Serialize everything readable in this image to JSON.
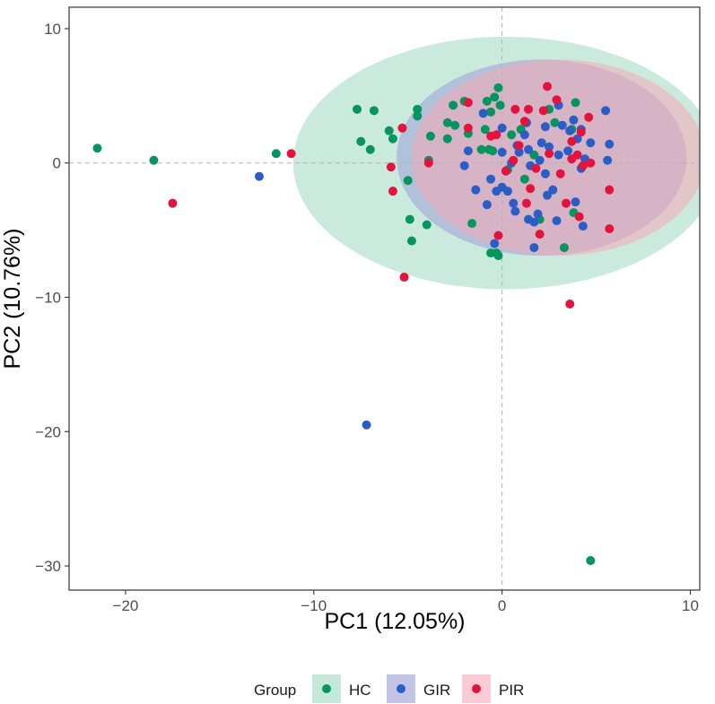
{
  "chart_data": {
    "type": "scatter",
    "title": "",
    "xlabel": "PC1 (12.05%)",
    "ylabel": "PC2 (10.76%)",
    "xlim": [
      -23,
      10.5
    ],
    "ylim": [
      -31.8,
      11.6
    ],
    "xticks": [
      -20,
      -10,
      0,
      10
    ],
    "yticks": [
      10,
      0,
      -10,
      -20,
      -30
    ],
    "reference_lines": {
      "x": 0,
      "y": 0
    },
    "legend": {
      "title": "Group",
      "position": "bottom"
    },
    "series": [
      {
        "name": "HC",
        "color": "#07955f",
        "ellipse": {
          "cx": 0.2,
          "cy": 0.0,
          "rx": 11.3,
          "ry": 9.4,
          "fill": "#9fd8c2"
        },
        "points": [
          [
            -21.5,
            1.1
          ],
          [
            -18.5,
            0.2
          ],
          [
            -12,
            0.7
          ],
          [
            -7.7,
            4.0
          ],
          [
            -6.8,
            3.9
          ],
          [
            -7.5,
            1.6
          ],
          [
            -7.0,
            1.0
          ],
          [
            -6.0,
            2.4
          ],
          [
            -5.8,
            1.8
          ],
          [
            -4.5,
            4.0
          ],
          [
            -4.5,
            3.5
          ],
          [
            -5.0,
            -1.3
          ],
          [
            -3.8,
            2.0
          ],
          [
            -3.9,
            0.2
          ],
          [
            -4.0,
            -4.6
          ],
          [
            -4.9,
            -4.2
          ],
          [
            -4.8,
            -5.8
          ],
          [
            -2.6,
            4.3
          ],
          [
            -2.5,
            2.8
          ],
          [
            -2.9,
            3.0
          ],
          [
            -2.0,
            4.6
          ],
          [
            -1.8,
            2.2
          ],
          [
            -2.9,
            1.8
          ],
          [
            -0.9,
            2.5
          ],
          [
            -0.6,
            3.8
          ],
          [
            -0.4,
            4.9
          ],
          [
            -0.8,
            4.6
          ],
          [
            -0.2,
            5.6
          ],
          [
            -0.1,
            4.3
          ],
          [
            -1.1,
            1.0
          ],
          [
            -0.7,
            1.0
          ],
          [
            -0.5,
            0.9
          ],
          [
            -1.6,
            -4.5
          ],
          [
            0.3,
            -0.5
          ],
          [
            0.5,
            2.1
          ],
          [
            1.0,
            2.5
          ],
          [
            1.2,
            -1.2
          ],
          [
            1.7,
            0.6
          ],
          [
            2.0,
            -4.2
          ],
          [
            2.5,
            4.0
          ],
          [
            2.8,
            3.0
          ],
          [
            3.7,
            2.5
          ],
          [
            3.9,
            4.5
          ],
          [
            3.8,
            -3.7
          ],
          [
            3.3,
            -6.3
          ],
          [
            -0.3,
            -6.7
          ],
          [
            -0.6,
            -6.7
          ],
          [
            -0.2,
            -6.9
          ],
          [
            4.7,
            -29.6
          ]
        ]
      },
      {
        "name": "GIR",
        "color": "#2a5dc6",
        "ellipse": {
          "cx": 2.1,
          "cy": 0.4,
          "rx": 7.7,
          "ry": 7.3,
          "fill": "#9a9ed6"
        },
        "points": [
          [
            -12.9,
            -1.0
          ],
          [
            -7.2,
            -19.5
          ],
          [
            -2.0,
            -0.2
          ],
          [
            -1.4,
            -2.0
          ],
          [
            -1.8,
            0.9
          ],
          [
            -1.0,
            3.7
          ],
          [
            -0.6,
            -1.2
          ],
          [
            -0.8,
            -3.1
          ],
          [
            -0.3,
            -2.1
          ],
          [
            -0.4,
            -6.0
          ],
          [
            0.0,
            0.8
          ],
          [
            0.0,
            2.6
          ],
          [
            0.0,
            -1.8
          ],
          [
            0.3,
            -2.1
          ],
          [
            0.5,
            0.0
          ],
          [
            0.6,
            -3.0
          ],
          [
            0.7,
            -3.6
          ],
          [
            0.8,
            1.3
          ],
          [
            0.9,
            0.8
          ],
          [
            1.2,
            2.1
          ],
          [
            1.3,
            3.0
          ],
          [
            1.4,
            -4.2
          ],
          [
            1.4,
            1.0
          ],
          [
            1.5,
            -0.2
          ],
          [
            1.7,
            -4.4
          ],
          [
            1.7,
            -6.3
          ],
          [
            1.9,
            -3.8
          ],
          [
            2.0,
            0.2
          ],
          [
            2.1,
            1.5
          ],
          [
            2.3,
            -0.8
          ],
          [
            2.3,
            2.7
          ],
          [
            2.4,
            -2.4
          ],
          [
            2.5,
            1.2
          ],
          [
            2.7,
            -2.0
          ],
          [
            2.9,
            -4.3
          ],
          [
            3.0,
            0.6
          ],
          [
            3.0,
            4.3
          ],
          [
            3.2,
            2.8
          ],
          [
            3.5,
            0.9
          ],
          [
            3.6,
            2.4
          ],
          [
            3.8,
            3.2
          ],
          [
            3.9,
            -2.9
          ],
          [
            4.0,
            1.8
          ],
          [
            4.2,
            -0.4
          ],
          [
            4.2,
            2.5
          ],
          [
            4.3,
            -4.7
          ],
          [
            4.4,
            0.3
          ],
          [
            4.7,
            1.5
          ],
          [
            5.5,
            3.9
          ],
          [
            5.6,
            0.2
          ],
          [
            5.7,
            1.4
          ]
        ]
      },
      {
        "name": "PIR",
        "color": "#e3133e",
        "ellipse": {
          "cx": 3.0,
          "cy": 0.4,
          "rx": 7.8,
          "ry": 7.3,
          "fill": "#f7a8b6"
        },
        "points": [
          [
            -17.5,
            -3.0
          ],
          [
            -11.2,
            0.7
          ],
          [
            -5.9,
            -0.3
          ],
          [
            -5.8,
            -2.1
          ],
          [
            -5.3,
            2.6
          ],
          [
            -5.2,
            -8.5
          ],
          [
            -3.9,
            0.0
          ],
          [
            -1.8,
            2.6
          ],
          [
            -1.8,
            4.5
          ],
          [
            -0.6,
            2.0
          ],
          [
            -0.3,
            2.1
          ],
          [
            -0.2,
            -5.4
          ],
          [
            0.2,
            -0.6
          ],
          [
            0.6,
            0.2
          ],
          [
            0.7,
            4.0
          ],
          [
            0.9,
            1.3
          ],
          [
            1.2,
            3.1
          ],
          [
            1.3,
            -3.0
          ],
          [
            1.4,
            4.0
          ],
          [
            1.5,
            -1.9
          ],
          [
            1.8,
            -0.4
          ],
          [
            2.0,
            -5.3
          ],
          [
            2.2,
            3.9
          ],
          [
            2.4,
            5.7
          ],
          [
            2.5,
            0.7
          ],
          [
            2.9,
            4.7
          ],
          [
            3.1,
            -0.8
          ],
          [
            3.4,
            -3.0
          ],
          [
            3.6,
            -10.5
          ],
          [
            3.7,
            1.6
          ],
          [
            3.7,
            0.3
          ],
          [
            4.0,
            0.6
          ],
          [
            4.1,
            -4.0
          ],
          [
            4.2,
            2.3
          ],
          [
            4.3,
            -0.2
          ],
          [
            4.6,
            3.4
          ],
          [
            4.7,
            0.0
          ],
          [
            5.7,
            -2.0
          ],
          [
            5.7,
            -4.9
          ]
        ]
      }
    ]
  }
}
